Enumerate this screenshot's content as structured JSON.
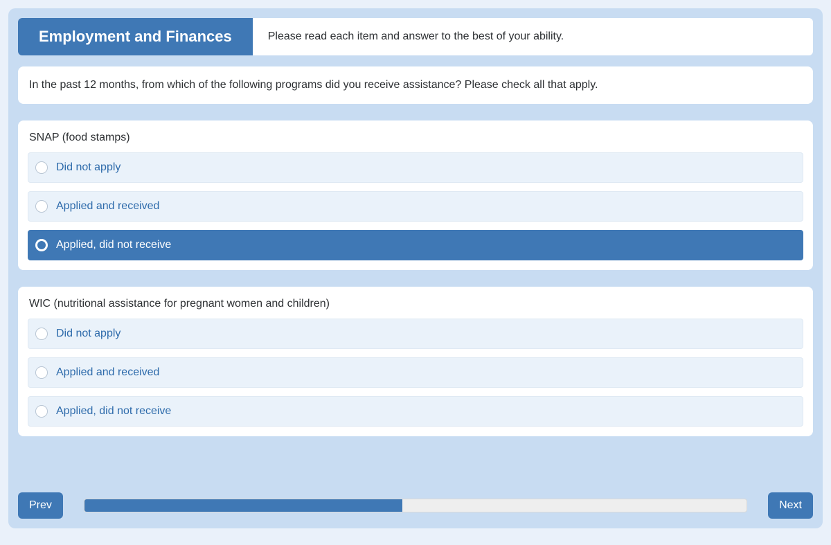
{
  "colors": {
    "page_bg": "#eaf1fa",
    "panel_bg": "#c8dcf2",
    "card_bg": "#ffffff",
    "accent": "#3f78b5",
    "option_bg": "#eaf2fa",
    "option_border": "#dfe9f3",
    "option_text": "#2e6bab",
    "body_text": "#2d3033",
    "progress_track": "#eeeeee",
    "progress_border": "#d9d9d9"
  },
  "header": {
    "title": "Employment and Finances",
    "instruction": "Please read each item and answer to the best of your ability."
  },
  "question": "In the past 12 months, from which of the following programs did you receive assistance?  Please check all that apply.",
  "items": [
    {
      "title": "SNAP (food stamps)",
      "options": [
        {
          "label": "Did not apply",
          "selected": false
        },
        {
          "label": "Applied and received",
          "selected": false
        },
        {
          "label": "Applied, did not receive",
          "selected": true
        }
      ]
    },
    {
      "title": "WIC (nutritional assistance for pregnant women and children)",
      "options": [
        {
          "label": "Did not apply",
          "selected": false
        },
        {
          "label": "Applied and received",
          "selected": false
        },
        {
          "label": "Applied, did not receive",
          "selected": false
        }
      ]
    }
  ],
  "footer": {
    "prev_label": "Prev",
    "next_label": "Next",
    "progress_percent": 48
  }
}
